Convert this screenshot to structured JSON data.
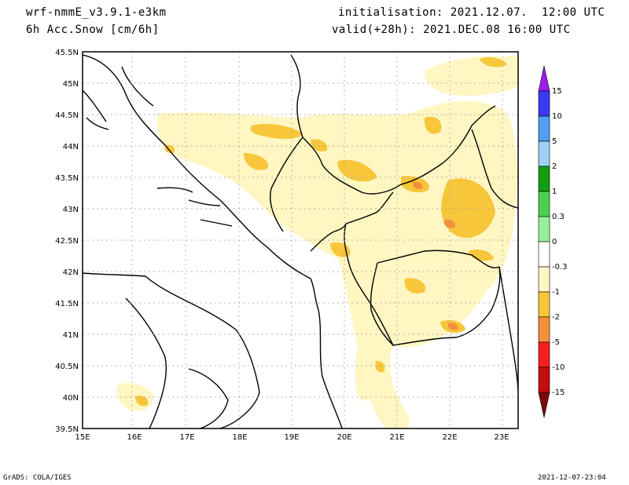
{
  "header": {
    "model": "wrf-nmmE_v3.9.1-e3km",
    "variable": "6h Acc.Snow [cm/6h]",
    "init": "initialisation: 2021.12.07.  12:00 UTC",
    "valid": "valid(+28h): 2021.DEC.08 16:00 UTC"
  },
  "map": {
    "lat_labels": [
      "45.5N",
      "45N",
      "44.5N",
      "44N",
      "43.5N",
      "43N",
      "42.5N",
      "42N",
      "41.5N",
      "41N",
      "40.5N",
      "40N",
      "39.5N"
    ],
    "lon_labels": [
      "15E",
      "16E",
      "17E",
      "18E",
      "19E",
      "20E",
      "21E",
      "22E",
      "23E"
    ],
    "lon_range": [
      15,
      23.3
    ],
    "lat_range": [
      39.5,
      45.5
    ],
    "grid": true
  },
  "colorbar": {
    "labels": [
      "15",
      "10",
      "5",
      "2",
      "1",
      "0.3",
      "0",
      "-0.3",
      "-1",
      "-2",
      "-5",
      "-10",
      "-15"
    ],
    "colors": [
      "#9a1ef0",
      "#3a3af5",
      "#4f9ef0",
      "#9ed0f5",
      "#119e11",
      "#4ed04e",
      "#98ee98",
      "#ffffff",
      "#fff6c2",
      "#f7c63a",
      "#f5903a",
      "#f51e1e",
      "#c40d0d",
      "#7a0a0a"
    ]
  },
  "footer": {
    "left": "GrADS: COLA/IGES",
    "right": "2021-12-07-23:04"
  }
}
